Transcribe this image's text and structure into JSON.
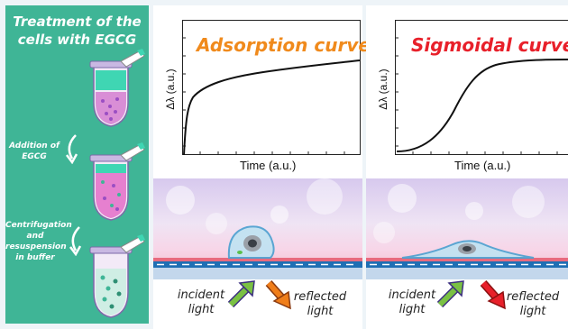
{
  "left_panel": {
    "title_line1": "Treatment of the",
    "title_line2": "cells with EGCG",
    "step1_line1": "Addition of",
    "step1_line2": "EGCG",
    "step2_line1": "Centrifugation",
    "step2_line2": "and",
    "step2_line3": "resuspension",
    "step2_line4": "in buffer"
  },
  "charts": [
    {
      "title": "Adsorption curve",
      "title_color": "#f08a1c",
      "xlabel": "Time (a.u.)",
      "ylabel": "Δλ (a.u.)"
    },
    {
      "title": "Sigmoidal curve",
      "title_color": "#e8202a",
      "xlabel": "Time (a.u.)",
      "ylabel": "Δλ (a.u.)"
    }
  ],
  "chart_data": [
    {
      "type": "line",
      "title": "Adsorption curve",
      "xlabel": "Time (a.u.)",
      "ylabel": "Δλ (a.u.)",
      "shape": "logarithmic rise (adsorption)",
      "grid": false
    },
    {
      "type": "line",
      "title": "Sigmoidal curve",
      "xlabel": "Time (a.u.)",
      "ylabel": "Δλ (a.u.)",
      "shape": "sigmoidal rise",
      "grid": false
    }
  ],
  "scenes": [
    {
      "incident_line1": "incident",
      "incident_line2": "light",
      "reflected_line1": "reflected",
      "reflected_line2": "light",
      "incident_arrow_color": "#7ac143",
      "reflected_arrow_color": "#f07e1a"
    },
    {
      "incident_line1": "incident",
      "incident_line2": "light",
      "reflected_line1": "reflected",
      "reflected_line2": "light",
      "incident_arrow_color": "#7ac143",
      "reflected_arrow_color": "#e8202a"
    }
  ]
}
